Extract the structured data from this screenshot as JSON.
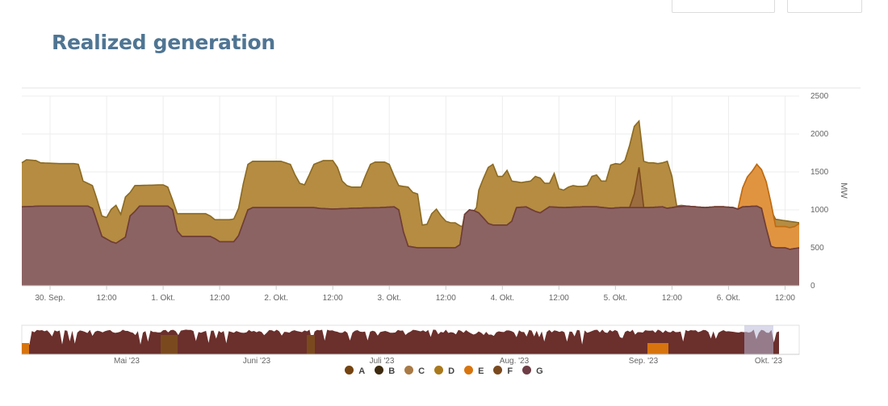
{
  "title": "Realized generation",
  "chart_data": {
    "type": "area",
    "stacked": true,
    "title": "Realized generation",
    "ylabel": "MW",
    "ylim": [
      0,
      2500
    ],
    "yticks": [
      0,
      500,
      1000,
      1500,
      2000,
      2500
    ],
    "x_range_hours": [
      -6,
      159
    ],
    "xticks": [
      {
        "h": 0,
        "label": "30. Sep."
      },
      {
        "h": 12,
        "label": "12:00"
      },
      {
        "h": 24,
        "label": "1. Okt."
      },
      {
        "h": 36,
        "label": "12:00"
      },
      {
        "h": 48,
        "label": "2. Okt."
      },
      {
        "h": 60,
        "label": "12:00"
      },
      {
        "h": 72,
        "label": "3. Okt."
      },
      {
        "h": 84,
        "label": "12:00"
      },
      {
        "h": 96,
        "label": "4. Okt."
      },
      {
        "h": 108,
        "label": "12:00"
      },
      {
        "h": 120,
        "label": "5. Okt."
      },
      {
        "h": 132,
        "label": "12:00"
      },
      {
        "h": 144,
        "label": "6. Okt."
      },
      {
        "h": 156,
        "label": "12:00"
      }
    ],
    "grid": true,
    "legend_position": "bottom",
    "series": [
      {
        "name": "G",
        "color": "#8a6060",
        "line": "#6e3d3a",
        "points": [
          [
            -6,
            1040
          ],
          [
            -2,
            1050
          ],
          [
            3,
            1050
          ],
          [
            8,
            1050
          ],
          [
            9,
            1020
          ],
          [
            11,
            650
          ],
          [
            13,
            580
          ],
          [
            14,
            560
          ],
          [
            15,
            600
          ],
          [
            16,
            640
          ],
          [
            17,
            920
          ],
          [
            18,
            980
          ],
          [
            19,
            1050
          ],
          [
            22,
            1050
          ],
          [
            25,
            1050
          ],
          [
            26,
            1000
          ],
          [
            27,
            720
          ],
          [
            28,
            650
          ],
          [
            34,
            650
          ],
          [
            35,
            620
          ],
          [
            36,
            580
          ],
          [
            39,
            580
          ],
          [
            40,
            660
          ],
          [
            42,
            1000
          ],
          [
            43,
            1030
          ],
          [
            49,
            1030
          ],
          [
            56,
            1030
          ],
          [
            57,
            1020
          ],
          [
            60,
            1010
          ],
          [
            64,
            1020
          ],
          [
            70,
            1030
          ],
          [
            73,
            1040
          ],
          [
            74,
            1000
          ],
          [
            75,
            710
          ],
          [
            76,
            520
          ],
          [
            78,
            500
          ],
          [
            84,
            500
          ],
          [
            86,
            500
          ],
          [
            87,
            540
          ],
          [
            88,
            940
          ],
          [
            89,
            1000
          ],
          [
            90,
            990
          ],
          [
            91,
            960
          ],
          [
            93,
            820
          ],
          [
            94,
            800
          ],
          [
            97,
            800
          ],
          [
            98,
            850
          ],
          [
            99,
            1030
          ],
          [
            101,
            1040
          ],
          [
            103,
            980
          ],
          [
            104,
            960
          ],
          [
            106,
            1040
          ],
          [
            109,
            1030
          ],
          [
            113,
            1040
          ],
          [
            116,
            1040
          ],
          [
            119,
            1020
          ],
          [
            121,
            1030
          ],
          [
            124,
            1030
          ],
          [
            127,
            1030
          ],
          [
            130,
            1040
          ],
          [
            131,
            1020
          ],
          [
            133,
            1040
          ],
          [
            135,
            1050
          ],
          [
            137,
            1040
          ],
          [
            139,
            1030
          ],
          [
            141,
            1040
          ],
          [
            143,
            1040
          ],
          [
            145,
            1030
          ],
          [
            146,
            1010
          ],
          [
            147,
            1040
          ],
          [
            150,
            1050
          ],
          [
            151,
            1020
          ],
          [
            152,
            760
          ],
          [
            153,
            520
          ],
          [
            154,
            500
          ],
          [
            156,
            500
          ],
          [
            157,
            480
          ],
          [
            159,
            500
          ]
        ]
      },
      {
        "name": "D",
        "color": "#b48a3e",
        "line": "#8c6a22",
        "points": [
          [
            -6,
            0
          ],
          [
            -5,
            0
          ],
          [
            -4,
            0
          ],
          [
            -2,
            0
          ],
          [
            0,
            0
          ],
          [
            2,
            0
          ],
          [
            3,
            0
          ],
          [
            4,
            0
          ],
          [
            5,
            0
          ],
          [
            6,
            0
          ],
          [
            7,
            0
          ],
          [
            8,
            0
          ],
          [
            9,
            0
          ],
          [
            10,
            0
          ],
          [
            11,
            0
          ],
          [
            12,
            0
          ],
          [
            13,
            0
          ],
          [
            14,
            0
          ],
          [
            15,
            0
          ],
          [
            16,
            0
          ],
          [
            17,
            0
          ],
          [
            18,
            0
          ],
          [
            19,
            0
          ],
          [
            24,
            0
          ],
          [
            25,
            0
          ],
          [
            26,
            0
          ],
          [
            27,
            0
          ],
          [
            30,
            0
          ],
          [
            35,
            0
          ],
          [
            36,
            0
          ],
          [
            39,
            0
          ],
          [
            40,
            0
          ],
          [
            41,
            0
          ],
          [
            42,
            0
          ],
          [
            45,
            0
          ],
          [
            49,
            0
          ],
          [
            50,
            0
          ],
          [
            51,
            0
          ],
          [
            52,
            0
          ],
          [
            53,
            0
          ],
          [
            54,
            0
          ],
          [
            55,
            0
          ],
          [
            56,
            0
          ],
          [
            57,
            0
          ],
          [
            58,
            0
          ],
          [
            59,
            0
          ],
          [
            60,
            0
          ],
          [
            61,
            0
          ],
          [
            64,
            0
          ],
          [
            65,
            0
          ],
          [
            66,
            0
          ],
          [
            69,
            0
          ],
          [
            70,
            0
          ],
          [
            71,
            0
          ],
          [
            72,
            0
          ],
          [
            74,
            0
          ],
          [
            75,
            0
          ],
          [
            76,
            0
          ],
          [
            77,
            0
          ],
          [
            78,
            0
          ],
          [
            79,
            0
          ],
          [
            80,
            0
          ],
          [
            81,
            0
          ],
          [
            82,
            0
          ],
          [
            83,
            0
          ],
          [
            84,
            0
          ],
          [
            85,
            0
          ],
          [
            86,
            0
          ],
          [
            87,
            0
          ],
          [
            88,
            0
          ],
          [
            89,
            0
          ],
          [
            90,
            0
          ],
          [
            91,
            0
          ],
          [
            92,
            0
          ],
          [
            93,
            0
          ],
          [
            94,
            0
          ],
          [
            99,
            0
          ],
          [
            100,
            0
          ],
          [
            101,
            0
          ],
          [
            102,
            0
          ],
          [
            103,
            0
          ],
          [
            104,
            0
          ],
          [
            105,
            0
          ],
          [
            106,
            0
          ],
          [
            108,
            0
          ],
          [
            109,
            0
          ],
          [
            110,
            0
          ],
          [
            111,
            0
          ],
          [
            112,
            0
          ],
          [
            113,
            0
          ],
          [
            114,
            0
          ],
          [
            115,
            0
          ],
          [
            116,
            0
          ],
          [
            117,
            0
          ],
          [
            118,
            0
          ],
          [
            119,
            0
          ],
          [
            120,
            0
          ],
          [
            121,
            0
          ],
          [
            122,
            0
          ],
          [
            123,
            0
          ],
          [
            124,
            0
          ],
          [
            125,
            0
          ],
          [
            126,
            0
          ],
          [
            127,
            0
          ],
          [
            128,
            0
          ],
          [
            129,
            0
          ],
          [
            130,
            0
          ],
          [
            131,
            0
          ],
          [
            132,
            0
          ],
          [
            133,
            0
          ],
          [
            159,
            0
          ]
        ]
      },
      {
        "name": "F",
        "color": "#9a6a3a",
        "line": "#7a4a1e",
        "points": [
          [
            -6,
            0
          ],
          [
            123,
            0
          ],
          [
            124,
            180
          ],
          [
            125,
            530
          ],
          [
            126,
            0
          ],
          [
            159,
            0
          ]
        ]
      },
      {
        "name": "E",
        "color": "#e0923c",
        "line": "#c06a10",
        "points": [
          [
            -6,
            0
          ],
          [
            146,
            0
          ],
          [
            147,
            250
          ],
          [
            148,
            390
          ],
          [
            149,
            460
          ],
          [
            150,
            550
          ],
          [
            151,
            510
          ],
          [
            152,
            610
          ],
          [
            153,
            570
          ],
          [
            154,
            280
          ],
          [
            156,
            280
          ],
          [
            158,
            290
          ],
          [
            159,
            320
          ]
        ]
      }
    ],
    "totals": {
      "note": "stack top of all series",
      "points": [
        [
          -6,
          1620
        ],
        [
          -5,
          1660
        ],
        [
          -3,
          1650
        ],
        [
          -2,
          1620
        ],
        [
          2,
          1610
        ],
        [
          5,
          1610
        ],
        [
          6,
          1600
        ],
        [
          7,
          1380
        ],
        [
          9,
          1320
        ],
        [
          10,
          1130
        ],
        [
          11,
          920
        ],
        [
          12,
          900
        ],
        [
          13,
          1010
        ],
        [
          14,
          1060
        ],
        [
          15,
          940
        ],
        [
          16,
          1170
        ],
        [
          17,
          1230
        ],
        [
          18,
          1320
        ],
        [
          24,
          1330
        ],
        [
          25,
          1300
        ],
        [
          26,
          1130
        ],
        [
          27,
          950
        ],
        [
          33,
          950
        ],
        [
          34,
          920
        ],
        [
          35,
          870
        ],
        [
          38,
          870
        ],
        [
          39,
          880
        ],
        [
          40,
          1020
        ],
        [
          41,
          1340
        ],
        [
          42,
          1600
        ],
        [
          43,
          1640
        ],
        [
          49,
          1640
        ],
        [
          50,
          1620
        ],
        [
          51,
          1600
        ],
        [
          52,
          1460
        ],
        [
          53,
          1350
        ],
        [
          54,
          1330
        ],
        [
          55,
          1460
        ],
        [
          56,
          1600
        ],
        [
          58,
          1650
        ],
        [
          60,
          1650
        ],
        [
          61,
          1560
        ],
        [
          62,
          1380
        ],
        [
          63,
          1320
        ],
        [
          64,
          1300
        ],
        [
          66,
          1300
        ],
        [
          67,
          1460
        ],
        [
          68,
          1600
        ],
        [
          69,
          1630
        ],
        [
          71,
          1630
        ],
        [
          72,
          1600
        ],
        [
          73,
          1450
        ],
        [
          74,
          1320
        ],
        [
          75,
          1310
        ],
        [
          76,
          1300
        ],
        [
          77,
          1230
        ],
        [
          78,
          1210
        ],
        [
          79,
          800
        ],
        [
          80,
          810
        ],
        [
          81,
          950
        ],
        [
          82,
          1010
        ],
        [
          83,
          920
        ],
        [
          84,
          850
        ],
        [
          85,
          830
        ],
        [
          86,
          830
        ],
        [
          87,
          790
        ],
        [
          88,
          770
        ],
        [
          89,
          780
        ],
        [
          90,
          800
        ],
        [
          91,
          1260
        ],
        [
          92,
          1420
        ],
        [
          93,
          1560
        ],
        [
          94,
          1600
        ],
        [
          95,
          1440
        ],
        [
          96,
          1440
        ],
        [
          97,
          1520
        ],
        [
          98,
          1380
        ],
        [
          99,
          1370
        ],
        [
          100,
          1360
        ],
        [
          101,
          1370
        ],
        [
          102,
          1380
        ],
        [
          103,
          1440
        ],
        [
          104,
          1420
        ],
        [
          105,
          1350
        ],
        [
          106,
          1350
        ],
        [
          107,
          1480
        ],
        [
          108,
          1280
        ],
        [
          109,
          1260
        ],
        [
          110,
          1300
        ],
        [
          111,
          1320
        ],
        [
          112,
          1310
        ],
        [
          113,
          1310
        ],
        [
          114,
          1320
        ],
        [
          115,
          1440
        ],
        [
          116,
          1460
        ],
        [
          117,
          1380
        ],
        [
          118,
          1380
        ],
        [
          119,
          1590
        ],
        [
          120,
          1610
        ],
        [
          121,
          1600
        ],
        [
          122,
          1650
        ],
        [
          123,
          1850
        ],
        [
          124,
          2100
        ],
        [
          125,
          2170
        ],
        [
          126,
          1640
        ],
        [
          127,
          1620
        ],
        [
          128,
          1620
        ],
        [
          129,
          1610
        ],
        [
          130,
          1620
        ],
        [
          131,
          1640
        ],
        [
          132,
          1440
        ],
        [
          133,
          1050
        ],
        [
          134,
          1060
        ],
        [
          159,
          830
        ]
      ]
    },
    "navigator": {
      "x_labels": [
        "Mai '23",
        "Juni '23",
        "Juli '23",
        "Aug. '23",
        "Sep. '23",
        "Okt. '23"
      ]
    }
  },
  "legend": [
    {
      "label": "A",
      "color": "#74430f"
    },
    {
      "label": "B",
      "color": "#3e2a0e"
    },
    {
      "label": "C",
      "color": "#a97a45"
    },
    {
      "label": "D",
      "color": "#a9791c"
    },
    {
      "label": "E",
      "color": "#d8740d"
    },
    {
      "label": "F",
      "color": "#7a4a1e"
    },
    {
      "label": "G",
      "color": "#6e3d45"
    }
  ]
}
